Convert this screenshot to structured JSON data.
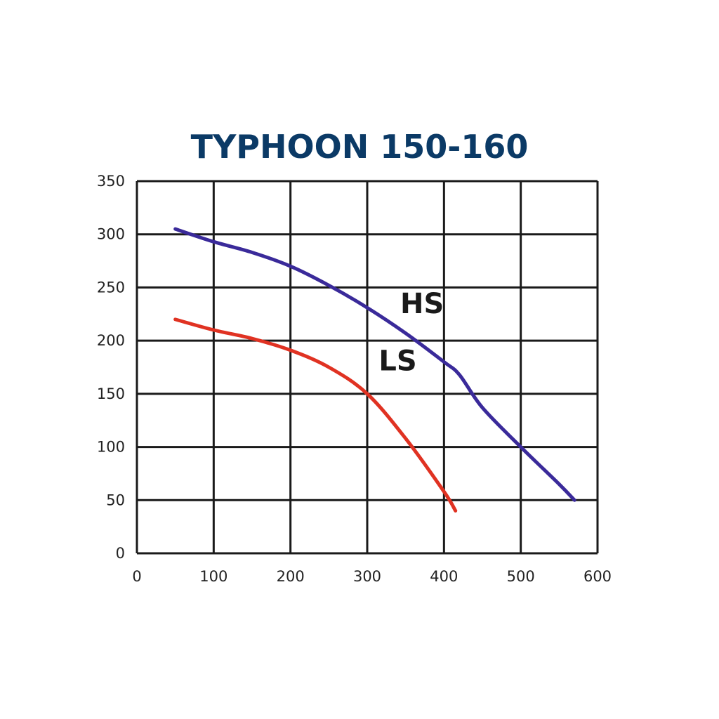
{
  "chart_data": {
    "type": "line",
    "title": "TYPHOON 150-160",
    "xlabel": "",
    "ylabel": "",
    "xlim": [
      0,
      600
    ],
    "ylim": [
      0,
      350
    ],
    "x_ticks": [
      0,
      100,
      200,
      300,
      400,
      500,
      600
    ],
    "y_ticks": [
      0,
      50,
      100,
      150,
      200,
      250,
      300,
      350
    ],
    "grid": true,
    "legend": "none",
    "title_color": "#0b3a66",
    "series": [
      {
        "name": "HS",
        "color": "#3a2a9a",
        "label_anchor": [
          343,
          226
        ],
        "x": [
          50,
          100,
          150,
          200,
          250,
          300,
          350,
          400,
          420,
          450,
          500,
          550,
          570
        ],
        "y": [
          305,
          293,
          283,
          270,
          252,
          231,
          207,
          180,
          168,
          137,
          100,
          65,
          50
        ]
      },
      {
        "name": "LS",
        "color": "#e03222",
        "label_anchor": [
          315,
          172
        ],
        "x": [
          50,
          100,
          150,
          200,
          250,
          300,
          350,
          400,
          415
        ],
        "y": [
          220,
          210,
          202,
          191,
          175,
          150,
          108,
          58,
          40
        ]
      }
    ]
  }
}
